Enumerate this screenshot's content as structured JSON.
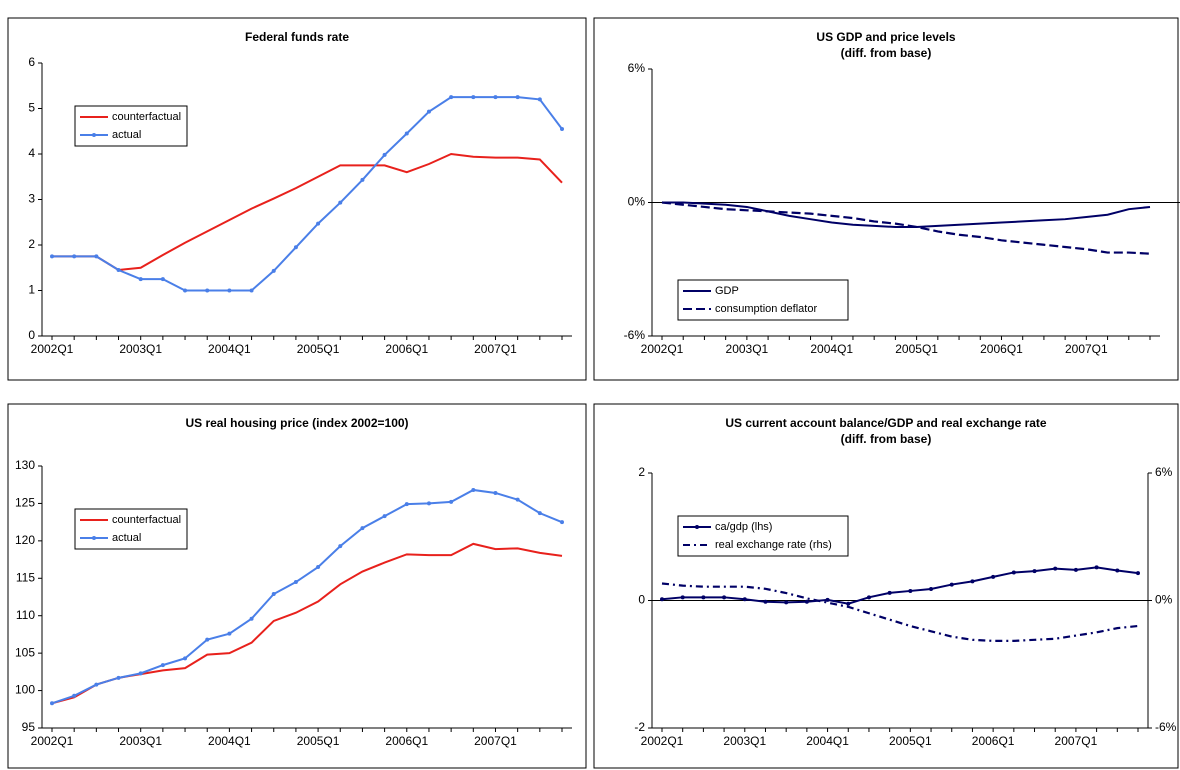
{
  "chart_data": [
    {
      "type": "line",
      "title": "Federal funds rate",
      "categories": [
        "2002Q1",
        null,
        null,
        null,
        "2003Q1",
        null,
        null,
        null,
        "2004Q1",
        null,
        null,
        null,
        "2005Q1",
        null,
        null,
        null,
        "2006Q1",
        null,
        null,
        null,
        "2007Q1",
        null,
        null,
        null
      ],
      "ylim": [
        0,
        6
      ],
      "yticks": [
        0,
        1,
        2,
        3,
        4,
        5,
        6
      ],
      "legend": "upper left",
      "series": [
        {
          "name": "counterfactual",
          "color": "#e8211c",
          "line_style": "solid",
          "marker": false,
          "values": [
            1.75,
            1.75,
            1.75,
            1.45,
            1.5,
            1.78,
            2.05,
            2.3,
            2.55,
            2.8,
            3.02,
            3.25,
            3.5,
            3.75,
            3.75,
            3.75,
            3.6,
            3.78,
            4.0,
            3.94,
            3.92,
            3.92,
            3.88,
            3.37
          ]
        },
        {
          "name": "actual",
          "color": "#4a7fe8",
          "line_style": "solid",
          "marker": true,
          "values": [
            1.75,
            1.75,
            1.75,
            1.45,
            1.25,
            1.25,
            1.0,
            1.0,
            1.0,
            1.0,
            1.43,
            1.95,
            2.47,
            2.93,
            3.43,
            3.98,
            4.45,
            4.93,
            5.25,
            5.25,
            5.25,
            5.25,
            5.2,
            4.55
          ]
        }
      ]
    },
    {
      "type": "line",
      "title": "US GDP and price levels",
      "subtitle": "(diff. from base)",
      "categories": [
        "2002Q1",
        null,
        null,
        null,
        "2003Q1",
        null,
        null,
        null,
        "2004Q1",
        null,
        null,
        null,
        "2005Q1",
        null,
        null,
        null,
        "2006Q1",
        null,
        null,
        null,
        "2007Q1",
        null,
        null,
        null
      ],
      "ylim": [
        -6,
        6
      ],
      "yticks": [
        {
          "value": -6,
          "label": "-6%"
        },
        {
          "value": 0,
          "label": "0%"
        },
        {
          "value": 6,
          "label": "6%"
        }
      ],
      "zero_line": true,
      "legend": "lower left",
      "series": [
        {
          "name": "GDP",
          "color": "#000066",
          "line_style": "solid",
          "marker": false,
          "values": [
            0,
            0,
            -0.05,
            -0.1,
            -0.2,
            -0.4,
            -0.6,
            -0.75,
            -0.9,
            -1.0,
            -1.05,
            -1.1,
            -1.1,
            -1.05,
            -1.0,
            -0.95,
            -0.9,
            -0.85,
            -0.8,
            -0.75,
            -0.65,
            -0.55,
            -0.3,
            -0.2
          ]
        },
        {
          "name": "consumption deflator",
          "color": "#000066",
          "line_style": "dashed",
          "marker": false,
          "values": [
            0,
            -0.1,
            -0.2,
            -0.3,
            -0.35,
            -0.4,
            -0.45,
            -0.5,
            -0.6,
            -0.7,
            -0.85,
            -0.95,
            -1.1,
            -1.3,
            -1.45,
            -1.55,
            -1.7,
            -1.8,
            -1.9,
            -2.0,
            -2.1,
            -2.25,
            -2.25,
            -2.3
          ]
        }
      ]
    },
    {
      "type": "line",
      "title": "US real housing price (index 2002=100)",
      "categories": [
        "2002Q1",
        null,
        null,
        null,
        "2003Q1",
        null,
        null,
        null,
        "2004Q1",
        null,
        null,
        null,
        "2005Q1",
        null,
        null,
        null,
        "2006Q1",
        null,
        null,
        null,
        "2007Q1",
        null,
        null,
        null
      ],
      "ylim": [
        95,
        130
      ],
      "yticks": [
        95,
        100,
        105,
        110,
        115,
        120,
        125,
        130
      ],
      "legend": "upper left",
      "series": [
        {
          "name": "counterfactual",
          "color": "#e8211c",
          "line_style": "solid",
          "marker": false,
          "values": [
            98.3,
            99.1,
            100.8,
            101.7,
            102.2,
            102.7,
            103.0,
            104.8,
            105.0,
            106.4,
            109.3,
            110.4,
            111.9,
            114.2,
            115.9,
            117.1,
            118.2,
            118.1,
            118.1,
            119.6,
            118.9,
            119.0,
            118.4,
            118.0
          ]
        },
        {
          "name": "actual",
          "color": "#4a7fe8",
          "line_style": "solid",
          "marker": true,
          "values": [
            98.3,
            99.3,
            100.8,
            101.7,
            102.3,
            103.4,
            104.3,
            106.8,
            107.6,
            109.6,
            112.9,
            114.5,
            116.5,
            119.3,
            121.7,
            123.3,
            124.9,
            125.0,
            125.2,
            126.8,
            126.4,
            125.5,
            123.7,
            122.5
          ]
        }
      ]
    },
    {
      "type": "line",
      "title": "US current account balance/GDP and real exchange rate",
      "subtitle": "(diff. from base)",
      "categories": [
        "2002Q1",
        null,
        null,
        null,
        "2003Q1",
        null,
        null,
        null,
        "2004Q1",
        null,
        null,
        null,
        "2005Q1",
        null,
        null,
        null,
        "2006Q1",
        null,
        null,
        null,
        "2007Q1",
        null,
        null,
        null
      ],
      "ylim": [
        -2,
        2
      ],
      "yticks": [
        -2,
        0,
        2
      ],
      "y2lim": [
        -6,
        6
      ],
      "y2ticks": [
        {
          "value": -6,
          "label": "-6%"
        },
        {
          "value": 0,
          "label": "0%"
        },
        {
          "value": 6,
          "label": "6%"
        }
      ],
      "zero_line": true,
      "legend": "upper left",
      "series": [
        {
          "name": "ca/gdp (lhs)",
          "color": "#000066",
          "line_style": "solid",
          "marker": true,
          "values": [
            0.02,
            0.05,
            0.05,
            0.05,
            0.02,
            -0.02,
            -0.03,
            -0.02,
            0.01,
            -0.05,
            0.05,
            0.12,
            0.15,
            0.18,
            0.25,
            0.3,
            0.37,
            0.44,
            0.46,
            0.5,
            0.48,
            0.52,
            0.47,
            0.43
          ]
        },
        {
          "name": "real  exchange rate (rhs)",
          "color": "#000066",
          "line_style": "dashdot",
          "marker": false,
          "axis": "y2",
          "values": [
            0.8,
            0.7,
            0.65,
            0.65,
            0.65,
            0.55,
            0.35,
            0.1,
            -0.1,
            -0.3,
            -0.6,
            -0.9,
            -1.2,
            -1.45,
            -1.7,
            -1.85,
            -1.9,
            -1.9,
            -1.85,
            -1.8,
            -1.65,
            -1.5,
            -1.3,
            -1.2
          ]
        }
      ]
    }
  ]
}
